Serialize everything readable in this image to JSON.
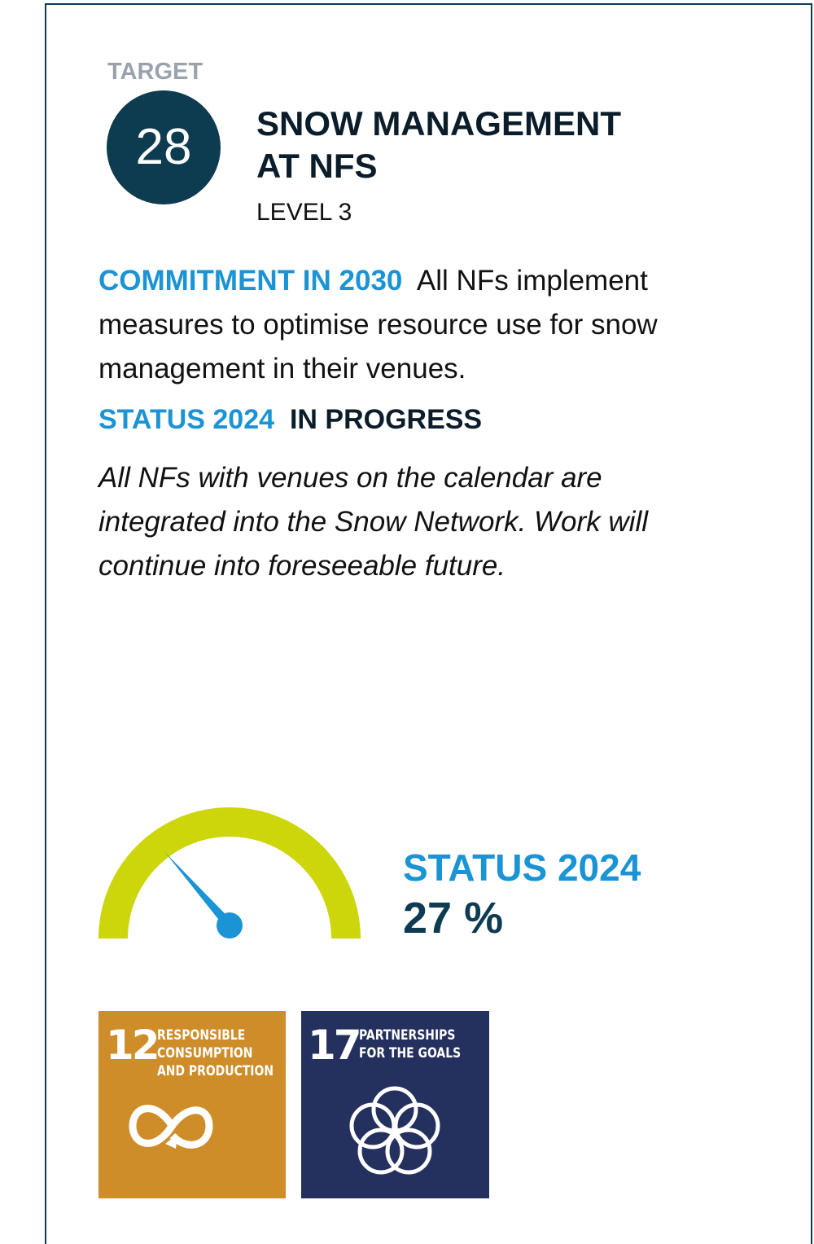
{
  "target_label": "TARGET",
  "target_number": "28",
  "title_lines": [
    "SNOW MANAGEMENT",
    "AT NFS"
  ],
  "level": "LEVEL 3",
  "commitment": {
    "label": "COMMITMENT IN 2030",
    "text": "All NFs implement measures to optimise resource use for snow management in their venues."
  },
  "status": {
    "label": "STATUS 2024",
    "value": "IN PROGRESS",
    "note": "All NFs with venues on the calendar are integrated into the Snow Network. Work will continue into foreseeable future."
  },
  "gauge": {
    "label": "STATUS 2024",
    "value": 27,
    "unit": "%"
  },
  "sdgs": [
    {
      "number": "12",
      "lines": [
        "RESPONSIBLE",
        "CONSUMPTION",
        "AND PRODUCTION"
      ],
      "color": "#cf8d2a"
    },
    {
      "number": "17",
      "lines": [
        "PARTNERSHIPS",
        "FOR THE GOALS"
      ],
      "color": "#24305e"
    }
  ]
}
